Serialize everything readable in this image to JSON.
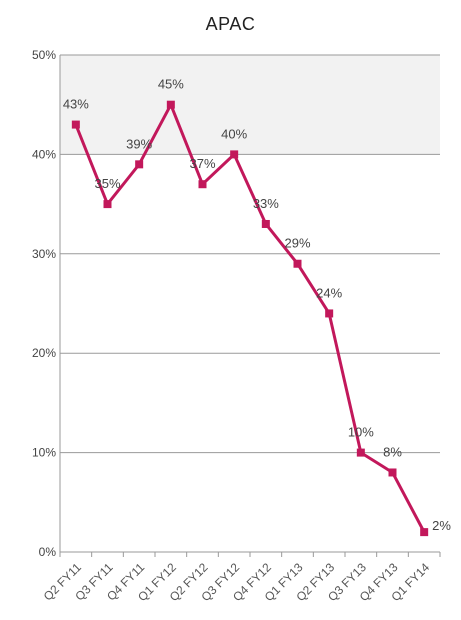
{
  "chart_data": {
    "type": "line",
    "title": "APAC",
    "categories": [
      "Q2 FY11",
      "Q3 FY11",
      "Q4 FY11",
      "Q1 FY12",
      "Q2 FY12",
      "Q3 FY12",
      "Q4 FY12",
      "Q1 FY13",
      "Q2 FY13",
      "Q3 FY13",
      "Q4 FY13",
      "Q1 FY14"
    ],
    "series": [
      {
        "values": [
          43,
          35,
          39,
          45,
          37,
          40,
          33,
          29,
          24,
          10,
          8,
          2
        ]
      }
    ],
    "data_labels": [
      "43%",
      "35%",
      "39%",
      "45%",
      "37%",
      "40%",
      "33%",
      "29%",
      "24%",
      "10%",
      "8%",
      "2%"
    ],
    "y_ticks": [
      "0%",
      "10%",
      "20%",
      "30%",
      "40%",
      "50%"
    ],
    "ylim": [
      0,
      50
    ],
    "xlabel": "",
    "ylabel": "",
    "grid": true,
    "legend": "none",
    "colors": {
      "line": "#c2185b",
      "grid": "#9a9a9a",
      "band": "#f2f2f2"
    }
  }
}
